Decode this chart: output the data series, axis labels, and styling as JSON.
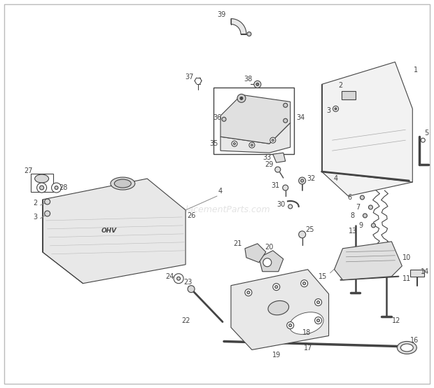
{
  "background_color": "#ffffff",
  "border_color": "#bbbbbb",
  "watermark_text": "eReplacementParts.com",
  "watermark_color": "#cccccc",
  "fig_width": 6.2,
  "fig_height": 5.54,
  "dpi": 100,
  "ec": "#444444",
  "lc": "#888888"
}
